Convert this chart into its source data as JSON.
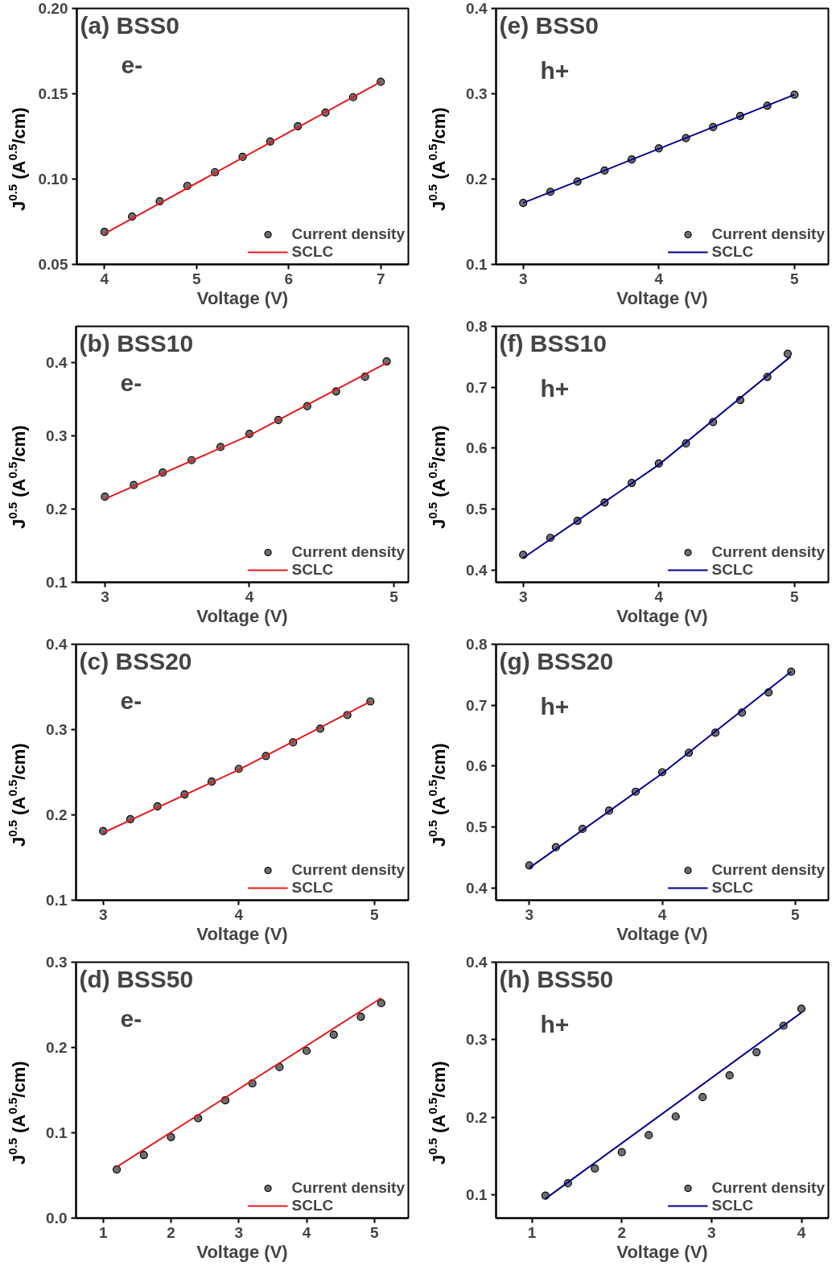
{
  "chart_data": [
    {
      "type": "scatter",
      "title": "(a) BSS0",
      "annotations": [
        "e-"
      ],
      "xlabel": "Voltage (V)",
      "ylabel": "J$^{0.5}$ (A$^{0.5}$/cm)",
      "xlim": [
        3.7,
        7.3
      ],
      "xticks": [
        4,
        5,
        6,
        7
      ],
      "ylim": [
        0.05,
        0.2
      ],
      "yticks": [
        0.05,
        {
          "value": 0.1,
          "label": "0.10"
        },
        0.15,
        {
          "value": 0.2,
          "label": "0.20"
        }
      ],
      "legend": "bottom right",
      "grid": false,
      "line_style": "solid",
      "series": [
        {
          "name": "Current density",
          "marker": "circle",
          "color": "#000000",
          "x": [
            4.0,
            4.3,
            4.6,
            4.9,
            5.2,
            5.5,
            5.8,
            6.1,
            6.4,
            6.7,
            7.0
          ],
          "values": [
            0.069,
            0.078,
            0.087,
            0.096,
            0.104,
            0.113,
            0.122,
            0.131,
            0.139,
            0.148,
            0.157
          ]
        },
        {
          "name": "SCLC",
          "type": "line",
          "color": "#e31a1c",
          "x": [
            4.0,
            7.0
          ],
          "values": [
            0.068,
            0.157
          ]
        }
      ]
    },
    {
      "type": "scatter",
      "title": "(e) BSS0",
      "annotations": [
        "h+"
      ],
      "xlabel": "Voltage (V)",
      "ylabel": "J$^{0.5}$ (A$^{0.5}$/cm)",
      "xlim": [
        2.8,
        5.25
      ],
      "xticks": [
        3,
        4,
        5
      ],
      "ylim": [
        0.1,
        0.4
      ],
      "yticks": [
        0.1,
        0.2,
        0.3,
        0.4
      ],
      "legend": "bottom right",
      "grid": false,
      "line_style": "solid",
      "series": [
        {
          "name": "Current density",
          "marker": "circle",
          "color": "#000000",
          "x": [
            3.0,
            3.2,
            3.4,
            3.6,
            3.8,
            4.0,
            4.2,
            4.4,
            4.6,
            4.8,
            5.0
          ],
          "values": [
            0.172,
            0.185,
            0.197,
            0.21,
            0.223,
            0.236,
            0.248,
            0.261,
            0.274,
            0.286,
            0.299
          ]
        },
        {
          "name": "SCLC",
          "type": "line",
          "color": "#00008b",
          "x": [
            3.0,
            5.0
          ],
          "values": [
            0.172,
            0.299
          ]
        }
      ]
    },
    {
      "type": "scatter",
      "title": "(b) BSS10",
      "annotations": [
        "e-"
      ],
      "xlabel": "Voltage (V)",
      "ylabel": "J$^{0.5}$ (A$^{0.5}$/cm)",
      "xlim": [
        2.8,
        5.1
      ],
      "xticks": [
        3,
        4,
        5
      ],
      "ylim": [
        0.1,
        0.45
      ],
      "yticks": [
        0.1,
        0.2,
        0.3,
        0.4
      ],
      "legend": "bottom right",
      "grid": false,
      "line_style": "solid",
      "series": [
        {
          "name": "Current density",
          "marker": "circle",
          "color": "#000000",
          "x": [
            3.0,
            3.2,
            3.4,
            3.6,
            3.8,
            4.0,
            4.2,
            4.4,
            4.6,
            4.8,
            4.95
          ],
          "values": [
            0.217,
            0.233,
            0.25,
            0.267,
            0.285,
            0.303,
            0.322,
            0.341,
            0.361,
            0.381,
            0.402
          ]
        },
        {
          "name": "SCLC",
          "type": "line",
          "color": "#e31a1c",
          "x": [
            3.0,
            4.0,
            4.95
          ],
          "values": [
            0.214,
            0.301,
            0.4
          ]
        }
      ]
    },
    {
      "type": "scatter",
      "title": "(f) BSS10",
      "annotations": [
        "h+"
      ],
      "xlabel": "Voltage (V)",
      "ylabel": "J$^{0.5}$ (A$^{0.5}$/cm)",
      "xlim": [
        2.8,
        5.25
      ],
      "xticks": [
        3,
        4,
        5
      ],
      "ylim": [
        0.38,
        0.8
      ],
      "yticks": [
        0.4,
        0.5,
        0.6,
        0.7,
        0.8
      ],
      "legend": "bottom right",
      "grid": false,
      "line_style": "solid",
      "series": [
        {
          "name": "Current density",
          "marker": "circle",
          "color": "#000000",
          "x": [
            3.0,
            3.2,
            3.4,
            3.6,
            3.8,
            4.0,
            4.2,
            4.4,
            4.6,
            4.8,
            4.95
          ],
          "values": [
            0.425,
            0.453,
            0.481,
            0.511,
            0.543,
            0.575,
            0.608,
            0.643,
            0.679,
            0.717,
            0.755
          ]
        },
        {
          "name": "SCLC",
          "type": "line",
          "color": "#00008b",
          "x": [
            3.0,
            4.0,
            4.97
          ],
          "values": [
            0.42,
            0.573,
            0.75
          ]
        }
      ]
    },
    {
      "type": "scatter",
      "title": "(c) BSS20",
      "annotations": [
        "e-"
      ],
      "xlabel": "Voltage (V)",
      "ylabel": "J$^{0.5}$ (A$^{0.5}$/cm)",
      "xlim": [
        2.8,
        5.25
      ],
      "xticks": [
        3,
        4,
        5
      ],
      "ylim": [
        0.1,
        0.4
      ],
      "yticks": [
        0.1,
        0.2,
        0.3,
        0.4
      ],
      "legend": "bottom right",
      "grid": false,
      "line_style": "solid",
      "series": [
        {
          "name": "Current density",
          "marker": "circle",
          "color": "#000000",
          "x": [
            3.0,
            3.2,
            3.4,
            3.6,
            3.8,
            4.0,
            4.2,
            4.4,
            4.6,
            4.8,
            4.97
          ],
          "values": [
            0.181,
            0.195,
            0.21,
            0.224,
            0.239,
            0.254,
            0.269,
            0.285,
            0.301,
            0.317,
            0.333
          ]
        },
        {
          "name": "SCLC",
          "type": "line",
          "color": "#e31a1c",
          "x": [
            3.0,
            4.0,
            4.97
          ],
          "values": [
            0.179,
            0.253,
            0.333
          ]
        }
      ]
    },
    {
      "type": "scatter",
      "title": "(g) BSS20",
      "annotations": [
        "h+"
      ],
      "xlabel": "Voltage (V)",
      "ylabel": "J$^{0.5}$ (A$^{0.5}$/cm)",
      "xlim": [
        2.75,
        5.25
      ],
      "xticks": [
        3,
        4,
        5
      ],
      "ylim": [
        0.38,
        0.8
      ],
      "yticks": [
        0.4,
        0.5,
        0.6,
        0.7,
        0.8
      ],
      "legend": "bottom right",
      "grid": false,
      "line_style": "solid",
      "series": [
        {
          "name": "Current density",
          "marker": "circle",
          "color": "#000000",
          "x": [
            3.0,
            3.2,
            3.4,
            3.6,
            3.8,
            4.0,
            4.2,
            4.4,
            4.6,
            4.8,
            4.97
          ],
          "values": [
            0.437,
            0.467,
            0.497,
            0.527,
            0.558,
            0.59,
            0.622,
            0.655,
            0.688,
            0.721,
            0.755
          ]
        },
        {
          "name": "SCLC",
          "type": "line",
          "color": "#00008b",
          "x": [
            3.0,
            4.0,
            4.97
          ],
          "values": [
            0.433,
            0.588,
            0.755
          ]
        }
      ]
    },
    {
      "type": "scatter",
      "title": "(d) BSS50",
      "annotations": [
        "e-"
      ],
      "xlabel": "Voltage (V)",
      "ylabel": "J$^{0.5}$ (A$^{0.5}$/cm)",
      "xlim": [
        0.6,
        5.5
      ],
      "xticks": [
        1,
        2,
        3,
        4,
        5
      ],
      "ylim": [
        0,
        0.3
      ],
      "yticks": [
        {
          "value": 0,
          "label": "0.0"
        },
        0.1,
        0.2,
        0.3
      ],
      "legend": "bottom right",
      "grid": false,
      "line_style": "solid",
      "series": [
        {
          "name": "Current density",
          "marker": "circle",
          "color": "#000000",
          "x": [
            1.2,
            1.6,
            2.0,
            2.4,
            2.8,
            3.2,
            3.6,
            4.0,
            4.4,
            4.8,
            5.1
          ],
          "values": [
            0.057,
            0.074,
            0.095,
            0.117,
            0.138,
            0.158,
            0.177,
            0.196,
            0.215,
            0.236,
            0.252
          ]
        },
        {
          "name": "SCLC",
          "type": "line",
          "color": "#e31a1c",
          "x": [
            1.2,
            5.1
          ],
          "values": [
            0.06,
            0.258
          ]
        }
      ]
    },
    {
      "type": "scatter",
      "title": "(h) BSS50",
      "annotations": [
        "h+"
      ],
      "xlabel": "Voltage (V)",
      "ylabel": "J$^{0.5}$ (A$^{0.5}$/cm)",
      "xlim": [
        0.6,
        4.3
      ],
      "xticks": [
        1,
        2,
        3,
        4
      ],
      "ylim": [
        0.07,
        0.4
      ],
      "yticks": [
        0.1,
        0.2,
        0.3,
        0.4
      ],
      "legend": "bottom right",
      "grid": false,
      "line_style": "solid",
      "series": [
        {
          "name": "Current density",
          "marker": "circle",
          "color": "#000000",
          "x": [
            1.15,
            1.4,
            1.7,
            2.0,
            2.3,
            2.6,
            2.9,
            3.2,
            3.5,
            3.8,
            4.0
          ],
          "values": [
            0.099,
            0.115,
            0.134,
            0.155,
            0.177,
            0.201,
            0.226,
            0.254,
            0.284,
            0.318,
            0.34
          ]
        },
        {
          "name": "SCLC",
          "type": "line",
          "color": "#00008b",
          "x": [
            1.15,
            4.0
          ],
          "values": [
            0.095,
            0.335
          ]
        }
      ]
    }
  ]
}
